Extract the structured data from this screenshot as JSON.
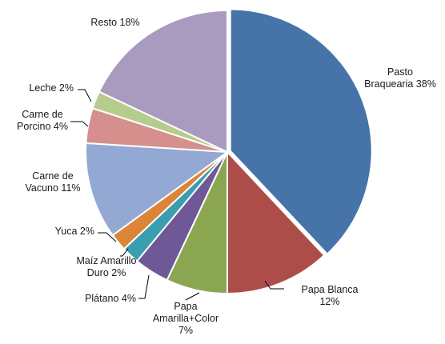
{
  "chart_data": {
    "type": "pie",
    "title": "",
    "start_angle_deg": 0,
    "direction": "clockwise",
    "slices": [
      {
        "label": [
          "Pasto",
          "Braquearia 38%"
        ],
        "value": 38,
        "color": "#4674a8"
      },
      {
        "label": [
          "Papa Blanca",
          "12%"
        ],
        "value": 12,
        "color": "#ad4d4a"
      },
      {
        "label": [
          "Papa",
          "Amarilla+Color",
          "7%"
        ],
        "value": 7,
        "color": "#8aa651"
      },
      {
        "label": [
          "Plátano 4%"
        ],
        "value": 4,
        "color": "#6e5896"
      },
      {
        "label": [
          "Maíz Amarillo",
          "Duro 2%"
        ],
        "value": 2,
        "color": "#3a9db0"
      },
      {
        "label": [
          "Yuca 2%"
        ],
        "value": 2,
        "color": "#dc8438"
      },
      {
        "label": [
          "Carne de",
          "Vacuno 11%"
        ],
        "value": 11,
        "color": "#93a8d3"
      },
      {
        "label": [
          "Carne de",
          "Porcino 4%"
        ],
        "value": 4,
        "color": "#d58f8d"
      },
      {
        "label": [
          "Leche 2%"
        ],
        "value": 2,
        "color": "#b5cc8c"
      },
      {
        "label": [
          "Resto 18%"
        ],
        "value": 18,
        "color": "#a99ac0"
      }
    ]
  }
}
